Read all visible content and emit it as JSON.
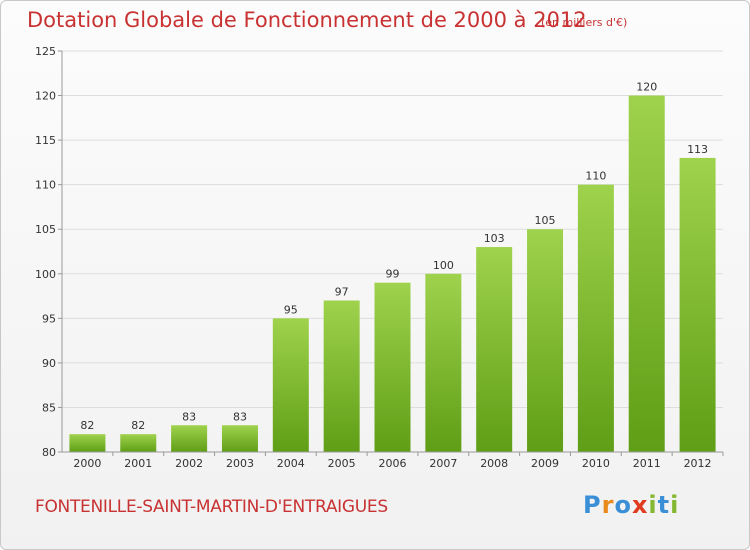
{
  "header": {
    "title": "Dotation Globale de Fonctionnement de 2000 à 2012",
    "unit": "(en milliers d'€)"
  },
  "footer": {
    "commune": "FONTENILLE-SAINT-MARTIN-D'ENTRAIGUES",
    "brand": "Proxiti"
  },
  "colors": {
    "title": "#c83232",
    "bar_top": "#9fd24d",
    "bar_bottom": "#5f9e16",
    "grid": "#dddddd",
    "axis": "#999999",
    "logo_letters": [
      "#3a8fd6",
      "#e98a1c",
      "#3a8fd6",
      "#e13b1f",
      "#84b832",
      "#3a8fd6",
      "#84b832"
    ]
  },
  "chart_data": {
    "type": "bar",
    "categories": [
      "2000",
      "2001",
      "2002",
      "2003",
      "2004",
      "2005",
      "2006",
      "2007",
      "2008",
      "2009",
      "2010",
      "2011",
      "2012"
    ],
    "values": [
      82,
      82,
      83,
      83,
      95,
      97,
      99,
      100,
      103,
      105,
      110,
      120,
      113
    ],
    "title": "Dotation Globale de Fonctionnement de 2000 à 2012",
    "subtitle": "(en milliers d'€)",
    "ylim": [
      80,
      125
    ],
    "yticks": [
      80,
      85,
      90,
      95,
      100,
      105,
      110,
      115,
      120,
      125
    ],
    "grid": true,
    "data_labels": true
  }
}
